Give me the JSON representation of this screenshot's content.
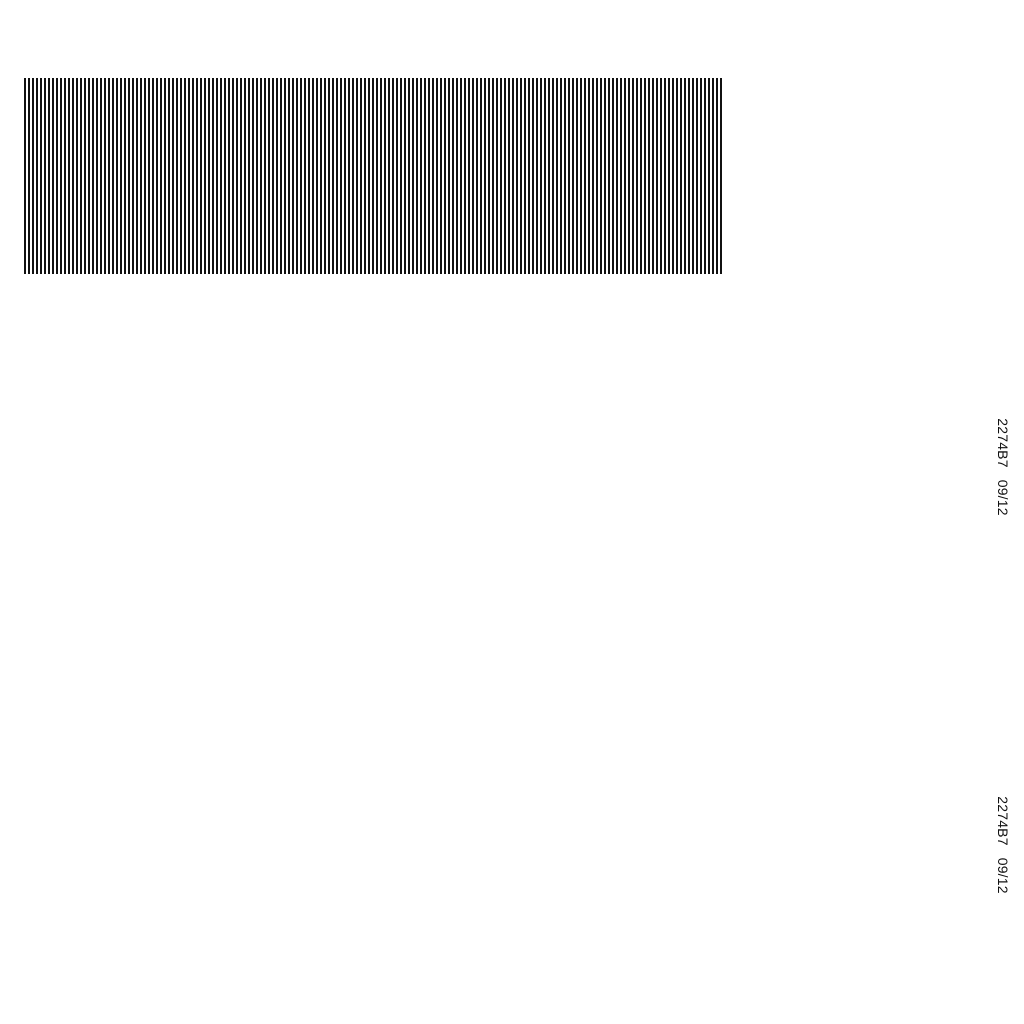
{
  "pattern": {
    "icon": "vertical-stripe-pattern",
    "stripe_color": "#111111",
    "background_color": "#ffffff"
  },
  "labels": [
    {
      "code": "2274B7",
      "date": "09/12"
    },
    {
      "code": "2274B7",
      "date": "09/12"
    }
  ]
}
